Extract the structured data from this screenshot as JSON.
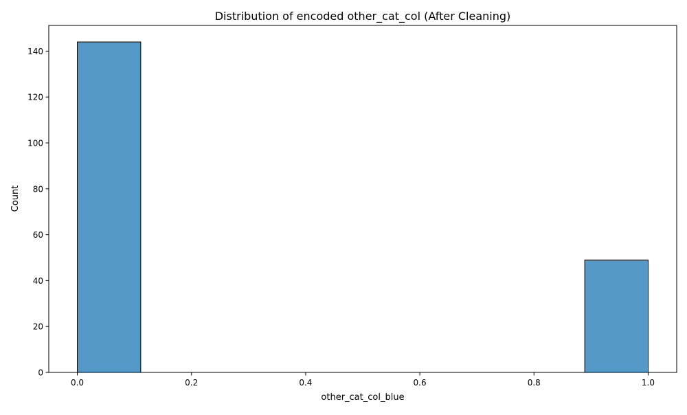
{
  "chart_data": {
    "type": "bar",
    "title": "Distribution of encoded other_cat_col (After Cleaning)",
    "xlabel": "other_cat_col_blue",
    "ylabel": "Count",
    "xlim": [
      -0.05,
      1.05
    ],
    "ylim": [
      0,
      151.2
    ],
    "xticks": [
      0.0,
      0.2,
      0.4,
      0.6,
      0.8,
      1.0
    ],
    "xtick_labels": [
      "0.0",
      "0.2",
      "0.4",
      "0.6",
      "0.8",
      "1.0"
    ],
    "yticks": [
      0,
      20,
      40,
      60,
      80,
      100,
      120,
      140
    ],
    "ytick_labels": [
      "0",
      "20",
      "40",
      "60",
      "80",
      "100",
      "120",
      "140"
    ],
    "bins": [
      {
        "x0": 0.0,
        "x1": 0.1111,
        "value": 144
      },
      {
        "x0": 0.1111,
        "x1": 0.2222,
        "value": 0
      },
      {
        "x0": 0.2222,
        "x1": 0.3333,
        "value": 0
      },
      {
        "x0": 0.3333,
        "x1": 0.4444,
        "value": 0
      },
      {
        "x0": 0.4444,
        "x1": 0.5556,
        "value": 0
      },
      {
        "x0": 0.5556,
        "x1": 0.6667,
        "value": 0
      },
      {
        "x0": 0.6667,
        "x1": 0.7778,
        "value": 0
      },
      {
        "x0": 0.7778,
        "x1": 0.8889,
        "value": 0
      },
      {
        "x0": 0.8889,
        "x1": 1.0,
        "value": 49
      }
    ],
    "grid": false,
    "colors": {
      "bar_fill": "#5599c8",
      "bar_edge": "#000000",
      "axes": "#000000",
      "background": "#ffffff"
    }
  }
}
